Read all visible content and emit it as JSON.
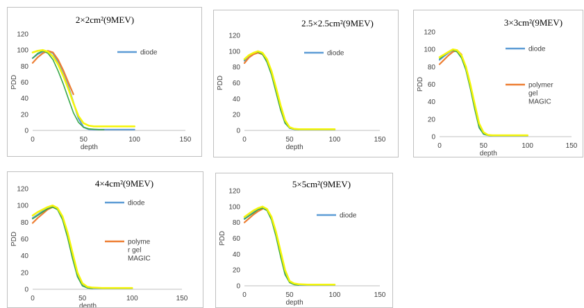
{
  "colors": {
    "diode": "#5b9bd5",
    "polymer_gel": "#ed7d31",
    "green": "#38a84a",
    "yellow": "#f5f50a",
    "axis": "#bfbfbf"
  },
  "chart_data": [
    {
      "type": "line",
      "title": "2×2cm²(9MEV)",
      "xlabel": "depth",
      "ylabel": "PDD",
      "xlim": [
        0,
        150
      ],
      "ylim": [
        0,
        120
      ],
      "xticks": [
        0,
        50,
        100,
        150
      ],
      "yticks": [
        0,
        20,
        40,
        60,
        80,
        100,
        120
      ],
      "legend": [
        "diode"
      ],
      "legend_position": "top-right",
      "series": [
        {
          "name": "diode",
          "color_key": "diode",
          "x": [
            0,
            5,
            10,
            15,
            20,
            25,
            30,
            35,
            40,
            45,
            50,
            55,
            60,
            65,
            70,
            75,
            80,
            85,
            90,
            95,
            100
          ],
          "y": [
            90,
            95,
            98,
            99,
            96,
            85,
            70,
            55,
            35,
            15,
            4,
            1.5,
            1,
            1,
            1,
            1,
            1,
            1,
            1,
            1,
            1
          ]
        },
        {
          "color_key": "polymer_gel",
          "x": [
            0,
            5,
            10,
            15,
            20,
            25,
            30,
            35,
            40
          ],
          "y": [
            84,
            91,
            96,
            99,
            97,
            88,
            75,
            60,
            45
          ]
        },
        {
          "color_key": "green",
          "x": [
            0,
            5,
            10,
            15,
            20,
            25,
            30,
            35,
            40,
            45,
            50,
            55,
            60,
            65,
            70
          ],
          "y": [
            90,
            96,
            99,
            96,
            88,
            74,
            58,
            40,
            22,
            10,
            4,
            2,
            1.5,
            1,
            1
          ]
        },
        {
          "color_key": "yellow",
          "x": [
            0,
            5,
            10,
            15,
            20,
            25,
            30,
            35,
            40,
            45,
            50,
            55,
            60,
            65,
            70,
            75,
            80,
            85,
            90,
            95,
            100
          ],
          "y": [
            97,
            99,
            100,
            98,
            92,
            82,
            68,
            52,
            34,
            18,
            9,
            6,
            5,
            5,
            5,
            5,
            5,
            5,
            5,
            5,
            5
          ]
        }
      ]
    },
    {
      "type": "line",
      "title": "2.5×2.5cm²(9MEV)",
      "xlabel": "depth",
      "ylabel": "PDD",
      "xlim": [
        0,
        150
      ],
      "ylim": [
        0,
        120
      ],
      "xticks": [
        0,
        50,
        100,
        150
      ],
      "yticks": [
        0,
        20,
        40,
        60,
        80,
        100,
        120
      ],
      "legend": [
        "diode"
      ],
      "legend_position": "top-right",
      "series": [
        {
          "name": "diode",
          "color_key": "diode",
          "x": [
            0,
            5,
            10,
            15,
            20,
            25,
            30,
            35,
            40,
            45,
            50,
            55,
            60,
            70,
            80,
            90,
            100
          ],
          "y": [
            88,
            93,
            97,
            99,
            97,
            88,
            72,
            50,
            28,
            10,
            3,
            1.5,
            1,
            1,
            1,
            1,
            1
          ]
        },
        {
          "color_key": "polymer_gel",
          "x": [
            0,
            5,
            10,
            15,
            20,
            25
          ],
          "y": [
            85,
            92,
            96,
            98,
            96,
            88
          ]
        },
        {
          "color_key": "green",
          "x": [
            0,
            5,
            10,
            15,
            20,
            25,
            30,
            35,
            40,
            45,
            50,
            55,
            60
          ],
          "y": [
            89,
            95,
            98,
            99,
            96,
            86,
            70,
            48,
            26,
            9,
            3,
            1.5,
            1
          ]
        },
        {
          "color_key": "yellow",
          "x": [
            0,
            5,
            10,
            15,
            20,
            25,
            30,
            35,
            40,
            45,
            50,
            55,
            60,
            70,
            80,
            90,
            100
          ],
          "y": [
            90,
            95,
            98,
            100,
            98,
            90,
            75,
            54,
            32,
            13,
            4,
            2,
            1.5,
            1.5,
            1.5,
            1.5,
            1.5
          ]
        }
      ]
    },
    {
      "type": "line",
      "title": "3×3cm²(9MEV)",
      "xlabel": "depth",
      "ylabel": "PDD",
      "xlim": [
        0,
        150
      ],
      "ylim": [
        0,
        120
      ],
      "xticks": [
        0,
        50,
        100,
        150
      ],
      "yticks": [
        0,
        20,
        40,
        60,
        80,
        100,
        120
      ],
      "legend": [
        "diode",
        "polymer gel MAGIC"
      ],
      "legend_position": "right",
      "series": [
        {
          "name": "diode",
          "color_key": "diode",
          "x": [
            0,
            5,
            10,
            15,
            20,
            25,
            30,
            35,
            40,
            45,
            50,
            55,
            60,
            70,
            80,
            90,
            100
          ],
          "y": [
            88,
            92,
            96,
            99,
            98,
            92,
            78,
            58,
            34,
            12,
            3,
            1.5,
            1,
            1,
            1,
            1,
            1
          ]
        },
        {
          "name": "polymer gel MAGIC",
          "color_key": "polymer_gel",
          "x": [
            0,
            5,
            10,
            15,
            20,
            25
          ],
          "y": [
            83,
            88,
            93,
            97,
            99,
            94
          ]
        },
        {
          "color_key": "green",
          "x": [
            0,
            5,
            10,
            15,
            20,
            25,
            30,
            35,
            40,
            45,
            50,
            55,
            60
          ],
          "y": [
            89,
            93,
            97,
            99,
            97,
            90,
            76,
            55,
            31,
            10,
            3,
            1.5,
            1
          ]
        },
        {
          "color_key": "yellow",
          "x": [
            0,
            5,
            10,
            15,
            20,
            25,
            30,
            35,
            40,
            45,
            50,
            55,
            60,
            70,
            80,
            90,
            100
          ],
          "y": [
            91,
            94,
            97,
            100,
            99,
            93,
            80,
            60,
            37,
            15,
            5,
            2,
            1.5,
            1.5,
            1.5,
            1.5,
            1.5
          ]
        }
      ]
    },
    {
      "type": "line",
      "title": "4×4cm²(9MEV)",
      "xlabel": "depth",
      "ylabel": "PDD",
      "xlim": [
        0,
        150
      ],
      "ylim": [
        0,
        120
      ],
      "xticks": [
        0,
        50,
        100,
        150
      ],
      "yticks": [
        0,
        20,
        40,
        60,
        80,
        100,
        120
      ],
      "legend": [
        "diode",
        "polyme r gel MAGIC"
      ],
      "legend_position": "right",
      "series": [
        {
          "name": "diode",
          "color_key": "diode",
          "x": [
            0,
            5,
            10,
            15,
            20,
            25,
            30,
            35,
            40,
            45,
            50,
            55,
            60,
            70,
            80,
            90,
            100
          ],
          "y": [
            85,
            89,
            93,
            97,
            99,
            96,
            85,
            65,
            40,
            17,
            5,
            2,
            1,
            1,
            1,
            1,
            1
          ]
        },
        {
          "name": "polyme r gel MAGIC",
          "color_key": "polymer_gel",
          "x": [
            0,
            5,
            10,
            15,
            20,
            25
          ],
          "y": [
            79,
            85,
            90,
            95,
            98,
            96
          ]
        },
        {
          "color_key": "green",
          "x": [
            0,
            5,
            10,
            15,
            20,
            25,
            30,
            35,
            40,
            45,
            50,
            55,
            60
          ],
          "y": [
            84,
            88,
            92,
            96,
            98,
            95,
            83,
            62,
            37,
            15,
            4,
            1.5,
            1
          ]
        },
        {
          "color_key": "yellow",
          "x": [
            0,
            5,
            10,
            15,
            20,
            25,
            30,
            35,
            40,
            45,
            50,
            55,
            60,
            70,
            80,
            90,
            100
          ],
          "y": [
            88,
            92,
            95,
            98,
            100,
            97,
            87,
            68,
            44,
            20,
            7,
            3,
            2,
            1.5,
            1.5,
            1.5,
            1.5
          ]
        }
      ]
    },
    {
      "type": "line",
      "title": "5×5cm²(9MEV)",
      "xlabel": "depth",
      "ylabel": "PDD",
      "xlim": [
        0,
        150
      ],
      "ylim": [
        0,
        120
      ],
      "xticks": [
        0,
        50,
        100,
        150
      ],
      "yticks": [
        0,
        20,
        40,
        60,
        80,
        100,
        120
      ],
      "legend": [
        "diode"
      ],
      "legend_position": "top-right",
      "series": [
        {
          "name": "diode",
          "color_key": "diode",
          "x": [
            0,
            5,
            10,
            15,
            20,
            25,
            30,
            35,
            40,
            45,
            50,
            55,
            60,
            70,
            80,
            90,
            100
          ],
          "y": [
            85,
            89,
            93,
            97,
            99,
            96,
            85,
            65,
            40,
            16,
            5,
            2,
            1,
            1,
            1,
            1,
            1
          ]
        },
        {
          "color_key": "polymer_gel",
          "x": [
            0,
            5,
            10,
            15,
            20
          ],
          "y": [
            80,
            85,
            90,
            94,
            97
          ]
        },
        {
          "color_key": "green",
          "x": [
            0,
            5,
            10,
            15,
            20,
            25,
            30,
            35,
            40,
            45,
            50,
            55,
            60
          ],
          "y": [
            84,
            88,
            92,
            96,
            98,
            95,
            83,
            62,
            37,
            14,
            4,
            1.5,
            1
          ]
        },
        {
          "color_key": "yellow",
          "x": [
            0,
            5,
            10,
            15,
            20,
            25,
            30,
            35,
            40,
            45,
            50,
            55,
            60,
            70,
            80,
            90,
            100
          ],
          "y": [
            87,
            91,
            95,
            98,
            100,
            97,
            87,
            68,
            44,
            20,
            6,
            3,
            2,
            1.5,
            1.5,
            1.5,
            1.5
          ]
        }
      ]
    }
  ]
}
